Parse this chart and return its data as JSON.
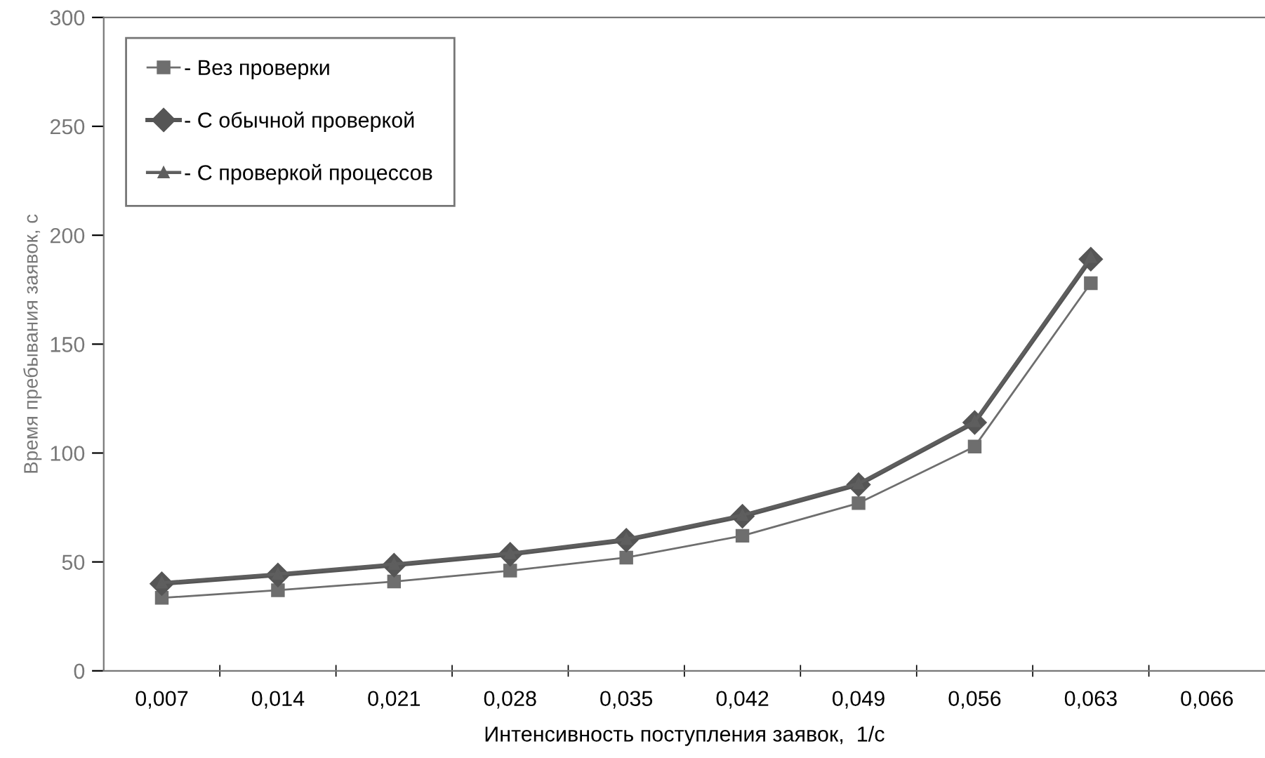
{
  "chart_data": {
    "type": "line",
    "xlabel": "Интенсивность поступления заявок,  1/с",
    "ylabel": "Время пребывания заявок, с",
    "categories": [
      "0,007",
      "0,014",
      "0,021",
      "0,028",
      "0,035",
      "0,042",
      "0,049",
      "0,056",
      "0,063",
      "0,066"
    ],
    "series": [
      {
        "name": "- Вез проверки",
        "color": "#6e6e6e",
        "marker": "square",
        "values": [
          33.5,
          37,
          41,
          46,
          52,
          62,
          77,
          103,
          178,
          null
        ]
      },
      {
        "name": "- С обычной проверкой",
        "color": "#555555",
        "marker": "diamond",
        "values": [
          40,
          44,
          48.5,
          53.5,
          60,
          71,
          85.5,
          114,
          189,
          null
        ]
      },
      {
        "name": "- С проверкой процессов",
        "color": "#5e5e5e",
        "marker": "triangle",
        "values": [
          40.5,
          44.5,
          49,
          54,
          60.5,
          71.5,
          86,
          114.5,
          190,
          null
        ]
      }
    ],
    "ylim": [
      0,
      300
    ],
    "yticks": [
      0,
      50,
      100,
      150,
      200,
      250,
      300
    ],
    "grid": false,
    "legend": "top left"
  }
}
